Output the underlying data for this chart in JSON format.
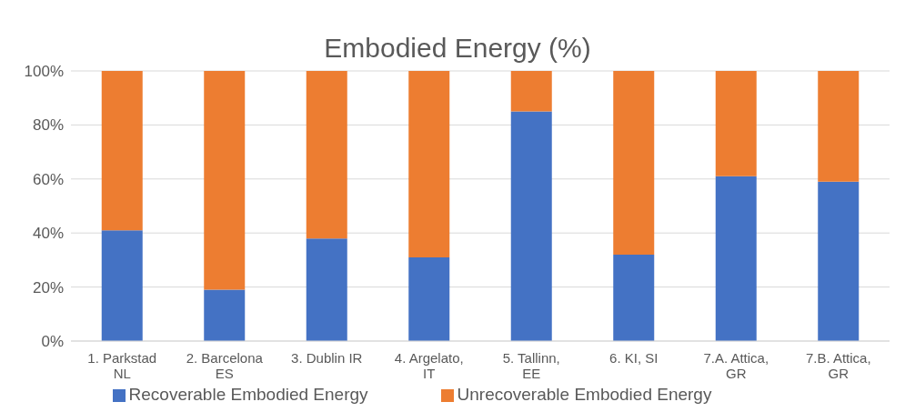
{
  "chart_data": {
    "type": "bar",
    "title": "Embodied Energy (%)",
    "stacked": true,
    "categories": [
      "1. Parkstad NL",
      "2. Barcelona ES",
      "3. Dublin IR",
      "4. Argelato, IT",
      "5. Tallinn, EE",
      "6. KI, SI",
      "7.A. Attica, GR",
      "7.B. Attica, GR"
    ],
    "series": [
      {
        "name": "Recoverable Embodied Energy",
        "color": "#4472c4",
        "values": [
          41,
          19,
          38,
          31,
          85,
          32,
          61,
          59
        ]
      },
      {
        "name": "Unrecoverable Embodied Energy",
        "color": "#ed7d31",
        "values": [
          59,
          81,
          62,
          69,
          15,
          68,
          39,
          41
        ]
      }
    ],
    "ylim": [
      0,
      100
    ],
    "yticks": [
      {
        "value": 0,
        "label": "0%"
      },
      {
        "value": 20,
        "label": "20%"
      },
      {
        "value": 40,
        "label": "40%"
      },
      {
        "value": 60,
        "label": "60%"
      },
      {
        "value": 80,
        "label": "80%"
      },
      {
        "value": 100,
        "label": "100%"
      }
    ],
    "grid": "y",
    "legend": "bottom"
  }
}
